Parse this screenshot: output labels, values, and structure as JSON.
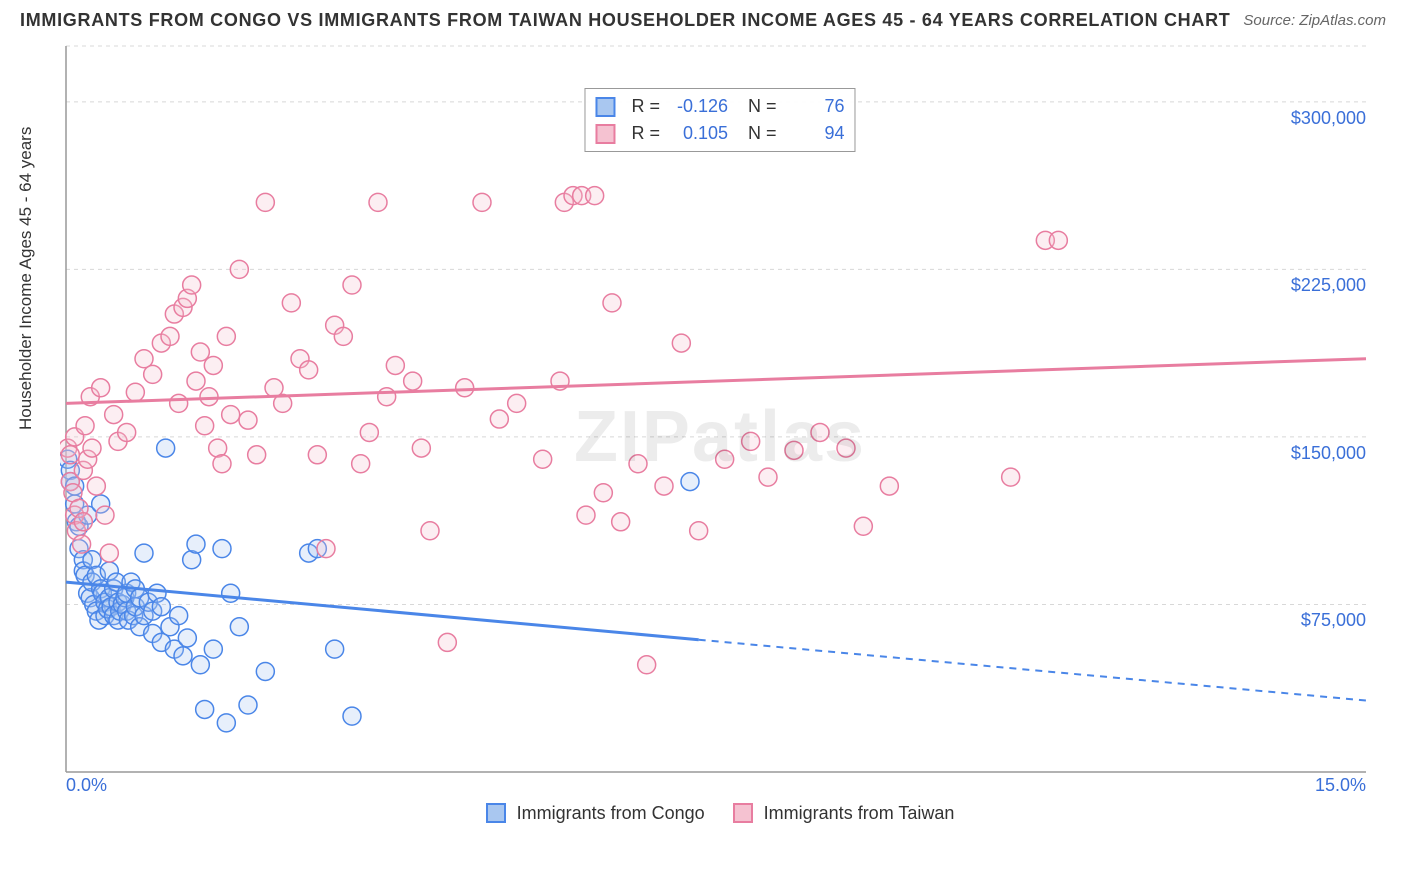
{
  "title": "IMMIGRANTS FROM CONGO VS IMMIGRANTS FROM TAIWAN HOUSEHOLDER INCOME AGES 45 - 64 YEARS CORRELATION CHART",
  "source_label": "Source:",
  "source_value": "ZipAtlas.com",
  "y_axis_label": "Householder Income Ages 45 - 64 years",
  "watermark": "ZIPatlas",
  "chart": {
    "type": "scatter",
    "background_color": "#ffffff",
    "grid_color": "#d8d8d8",
    "grid_dash": "4,4",
    "plot_border_color": "#999999",
    "x": {
      "min": 0.0,
      "max": 15.0,
      "ticks": [
        0.0,
        15.0
      ],
      "tick_labels": [
        "0.0%",
        "15.0%"
      ],
      "tick_color": "#3a6fd8"
    },
    "y": {
      "min": 0,
      "max": 325000,
      "gridlines": [
        75000,
        150000,
        225000,
        300000
      ],
      "tick_labels": [
        "$75,000",
        "$150,000",
        "$225,000",
        "$300,000"
      ],
      "tick_color": "#3a6fd8"
    },
    "marker_radius": 9,
    "marker_stroke_width": 1.5,
    "marker_fill_opacity": 0.28,
    "trend_line_width": 3
  },
  "series": [
    {
      "name": "Immigrants from Congo",
      "stroke": "#4a86e8",
      "fill": "#a9c7f0",
      "R": "-0.126",
      "N": "76",
      "trend": {
        "y_at_xmin": 85000,
        "y_at_xmax": 32000,
        "solid_until_x": 7.3
      },
      "points": [
        [
          0.02,
          140000
        ],
        [
          0.05,
          135000
        ],
        [
          0.05,
          130000
        ],
        [
          0.1,
          120000
        ],
        [
          0.1,
          128000
        ],
        [
          0.12,
          112000
        ],
        [
          0.15,
          100000
        ],
        [
          0.15,
          110000
        ],
        [
          0.2,
          95000
        ],
        [
          0.2,
          90000
        ],
        [
          0.22,
          88000
        ],
        [
          0.25,
          115000
        ],
        [
          0.25,
          80000
        ],
        [
          0.28,
          78000
        ],
        [
          0.3,
          95000
        ],
        [
          0.3,
          85000
        ],
        [
          0.32,
          75000
        ],
        [
          0.35,
          88000
        ],
        [
          0.35,
          72000
        ],
        [
          0.38,
          68000
        ],
        [
          0.4,
          120000
        ],
        [
          0.4,
          82000
        ],
        [
          0.42,
          80000
        ],
        [
          0.45,
          76000
        ],
        [
          0.45,
          70000
        ],
        [
          0.48,
          73000
        ],
        [
          0.5,
          90000
        ],
        [
          0.5,
          78000
        ],
        [
          0.52,
          74000
        ],
        [
          0.55,
          82000
        ],
        [
          0.55,
          70000
        ],
        [
          0.58,
          85000
        ],
        [
          0.6,
          76000
        ],
        [
          0.6,
          68000
        ],
        [
          0.62,
          72000
        ],
        [
          0.65,
          75000
        ],
        [
          0.68,
          78000
        ],
        [
          0.7,
          80000
        ],
        [
          0.7,
          72000
        ],
        [
          0.72,
          68000
        ],
        [
          0.75,
          85000
        ],
        [
          0.78,
          70000
        ],
        [
          0.8,
          82000
        ],
        [
          0.8,
          74000
        ],
        [
          0.85,
          78000
        ],
        [
          0.85,
          65000
        ],
        [
          0.9,
          98000
        ],
        [
          0.9,
          70000
        ],
        [
          0.95,
          76000
        ],
        [
          1.0,
          62000
        ],
        [
          1.0,
          72000
        ],
        [
          1.05,
          80000
        ],
        [
          1.1,
          58000
        ],
        [
          1.1,
          74000
        ],
        [
          1.15,
          145000
        ],
        [
          1.2,
          65000
        ],
        [
          1.25,
          55000
        ],
        [
          1.3,
          70000
        ],
        [
          1.35,
          52000
        ],
        [
          1.4,
          60000
        ],
        [
          1.45,
          95000
        ],
        [
          1.5,
          102000
        ],
        [
          1.55,
          48000
        ],
        [
          1.6,
          28000
        ],
        [
          1.7,
          55000
        ],
        [
          1.8,
          100000
        ],
        [
          1.85,
          22000
        ],
        [
          1.9,
          80000
        ],
        [
          2.0,
          65000
        ],
        [
          2.1,
          30000
        ],
        [
          2.3,
          45000
        ],
        [
          2.8,
          98000
        ],
        [
          2.9,
          100000
        ],
        [
          3.1,
          55000
        ],
        [
          3.3,
          25000
        ],
        [
          7.2,
          130000
        ]
      ]
    },
    {
      "name": "Immigrants from Taiwan",
      "stroke": "#e87da0",
      "fill": "#f5c2d1",
      "R": "0.105",
      "N": "94",
      "trend": {
        "y_at_xmin": 165000,
        "y_at_xmax": 185000,
        "solid_until_x": 15.0
      },
      "points": [
        [
          0.02,
          145000
        ],
        [
          0.05,
          142000
        ],
        [
          0.05,
          130000
        ],
        [
          0.08,
          125000
        ],
        [
          0.1,
          150000
        ],
        [
          0.1,
          115000
        ],
        [
          0.12,
          108000
        ],
        [
          0.15,
          118000
        ],
        [
          0.18,
          102000
        ],
        [
          0.2,
          135000
        ],
        [
          0.2,
          112000
        ],
        [
          0.22,
          155000
        ],
        [
          0.25,
          140000
        ],
        [
          0.28,
          168000
        ],
        [
          0.3,
          145000
        ],
        [
          0.35,
          128000
        ],
        [
          0.4,
          172000
        ],
        [
          0.45,
          115000
        ],
        [
          0.5,
          98000
        ],
        [
          0.55,
          160000
        ],
        [
          0.6,
          148000
        ],
        [
          0.7,
          152000
        ],
        [
          0.8,
          170000
        ],
        [
          0.9,
          185000
        ],
        [
          1.0,
          178000
        ],
        [
          1.1,
          192000
        ],
        [
          1.2,
          195000
        ],
        [
          1.25,
          205000
        ],
        [
          1.3,
          165000
        ],
        [
          1.35,
          208000
        ],
        [
          1.4,
          212000
        ],
        [
          1.45,
          218000
        ],
        [
          1.5,
          175000
        ],
        [
          1.55,
          188000
        ],
        [
          1.6,
          155000
        ],
        [
          1.65,
          168000
        ],
        [
          1.7,
          182000
        ],
        [
          1.75,
          145000
        ],
        [
          1.8,
          138000
        ],
        [
          1.85,
          195000
        ],
        [
          1.9,
          160000
        ],
        [
          2.0,
          225000
        ],
        [
          2.1,
          157500
        ],
        [
          2.2,
          142000
        ],
        [
          2.3,
          255000
        ],
        [
          2.4,
          172000
        ],
        [
          2.5,
          165000
        ],
        [
          2.6,
          210000
        ],
        [
          2.7,
          185000
        ],
        [
          2.8,
          180000
        ],
        [
          2.9,
          142000
        ],
        [
          3.0,
          100000
        ],
        [
          3.1,
          200000
        ],
        [
          3.2,
          195000
        ],
        [
          3.3,
          218000
        ],
        [
          3.4,
          138000
        ],
        [
          3.5,
          152000
        ],
        [
          3.6,
          255000
        ],
        [
          3.7,
          168000
        ],
        [
          3.8,
          182000
        ],
        [
          4.0,
          175000
        ],
        [
          4.1,
          145000
        ],
        [
          4.2,
          108000
        ],
        [
          4.4,
          58000
        ],
        [
          4.6,
          172000
        ],
        [
          4.8,
          255000
        ],
        [
          5.0,
          158000
        ],
        [
          5.2,
          165000
        ],
        [
          5.5,
          140000
        ],
        [
          5.7,
          175000
        ],
        [
          5.75,
          255000
        ],
        [
          5.85,
          258000
        ],
        [
          5.95,
          258000
        ],
        [
          6.0,
          115000
        ],
        [
          6.1,
          258000
        ],
        [
          6.2,
          125000
        ],
        [
          6.3,
          210000
        ],
        [
          6.4,
          112000
        ],
        [
          6.6,
          138000
        ],
        [
          6.7,
          48000
        ],
        [
          6.9,
          128000
        ],
        [
          7.1,
          192000
        ],
        [
          7.3,
          108000
        ],
        [
          7.6,
          140000
        ],
        [
          7.9,
          148000
        ],
        [
          8.1,
          132000
        ],
        [
          8.4,
          144000
        ],
        [
          8.7,
          152000
        ],
        [
          9.0,
          145000
        ],
        [
          9.2,
          110000
        ],
        [
          9.5,
          128000
        ],
        [
          10.9,
          132000
        ],
        [
          11.3,
          238000
        ],
        [
          11.45,
          238000
        ]
      ]
    }
  ],
  "legend_bottom": [
    {
      "label": "Immigrants from Congo",
      "stroke": "#4a86e8",
      "fill": "#a9c7f0"
    },
    {
      "label": "Immigrants from Taiwan",
      "stroke": "#e87da0",
      "fill": "#f5c2d1"
    }
  ]
}
